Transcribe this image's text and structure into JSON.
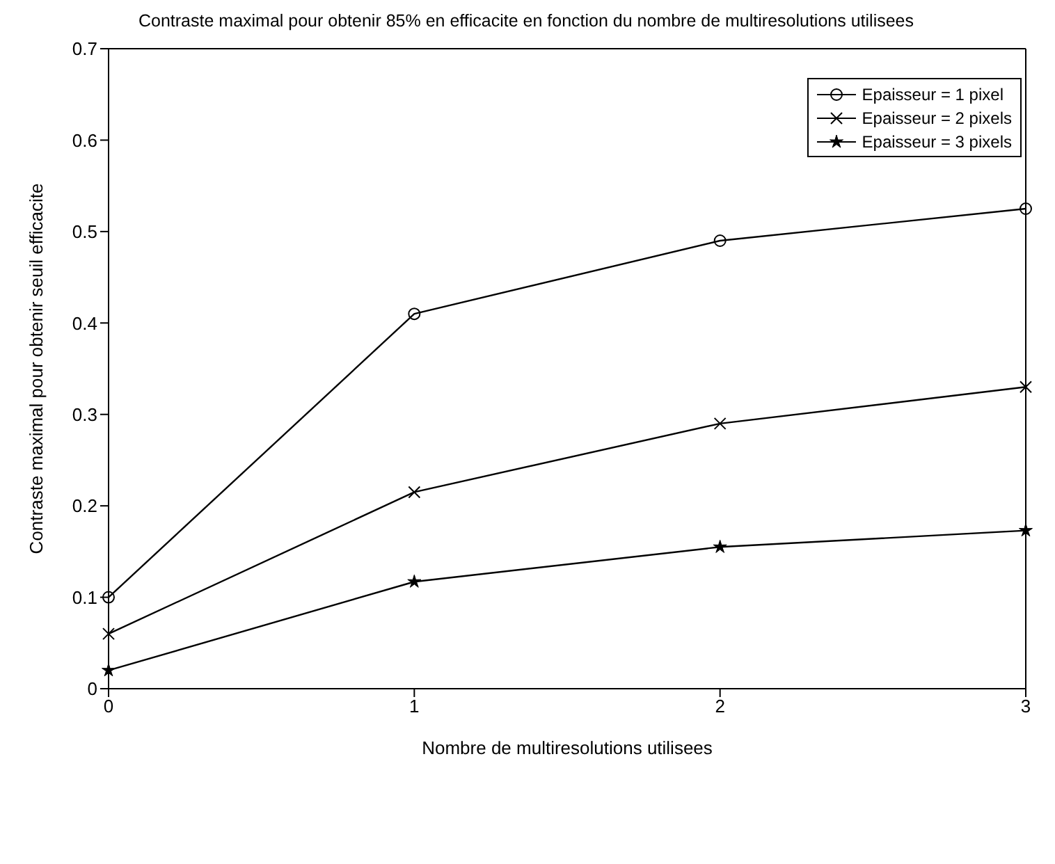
{
  "chart_data": {
    "type": "line",
    "title": "Contraste maximal pour obtenir 85% en efficacite en fonction du nombre de multiresolutions utilisees",
    "xlabel": "Nombre de multiresolutions utilisees",
    "ylabel": "Contraste maximal pour obtenir seuil efficacite",
    "x": [
      0,
      1,
      2,
      3
    ],
    "xlim": [
      0,
      3
    ],
    "xticks": [
      0,
      1,
      2,
      3
    ],
    "ylim": [
      0,
      0.7
    ],
    "yticks": [
      0,
      0.1,
      0.2,
      0.3,
      0.4,
      0.5,
      0.6,
      0.7
    ],
    "grid": false,
    "legend": "top right",
    "line_style": "solid",
    "series": [
      {
        "name": "Epaisseur = 1 pixel",
        "color": "#000000",
        "marker": "circle",
        "values": [
          0.1,
          0.41,
          0.49,
          0.525
        ]
      },
      {
        "name": "Epaisseur = 2 pixels",
        "color": "#000000",
        "marker": "cross",
        "values": [
          0.06,
          0.215,
          0.29,
          0.33
        ]
      },
      {
        "name": "Epaisseur = 3 pixels",
        "color": "#000000",
        "marker": "star",
        "values": [
          0.02,
          0.117,
          0.155,
          0.173
        ]
      }
    ]
  }
}
